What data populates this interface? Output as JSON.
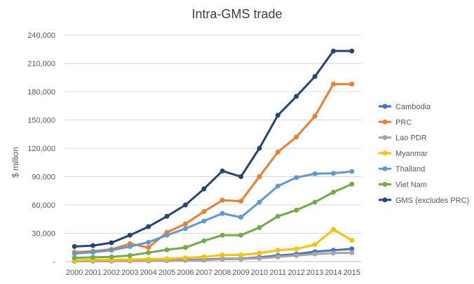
{
  "chart_data": {
    "type": "line",
    "title": "Intra-GMS trade",
    "xlabel": "",
    "ylabel": "$ million",
    "x": [
      "2000",
      "2001",
      "2002",
      "2003",
      "2004",
      "2005",
      "2006",
      "2007",
      "2008",
      "2009",
      "2010",
      "2011",
      "2012",
      "2013",
      "2014",
      "2015"
    ],
    "ylim": [
      0,
      240000
    ],
    "yticks": [
      0,
      30000,
      60000,
      90000,
      120000,
      150000,
      180000,
      210000,
      240000
    ],
    "ytick_labels": [
      "-",
      "30,000",
      "60,000",
      "90,000",
      "120,000",
      "150,000",
      "180,000",
      "210,000",
      "240,000"
    ],
    "grid": true,
    "legend_position": "right",
    "series": [
      {
        "name": "Cambodia",
        "color": "#4472c4",
        "values": [
          500,
          600,
          700,
          800,
          1000,
          1300,
          1700,
          2200,
          3000,
          3200,
          4500,
          6500,
          8000,
          10500,
          12000,
          13500
        ]
      },
      {
        "name": "PRC",
        "color": "#ed7d31",
        "values": [
          10000,
          11000,
          13000,
          19000,
          15000,
          31000,
          40000,
          53000,
          65000,
          64000,
          90000,
          116000,
          132000,
          154000,
          188000,
          188000
        ]
      },
      {
        "name": "Lao PDR",
        "color": "#a5a5a5",
        "values": [
          300,
          400,
          500,
          600,
          700,
          900,
          1200,
          1500,
          2500,
          2700,
          3500,
          5000,
          6500,
          8000,
          9000,
          9500
        ]
      },
      {
        "name": "Myanmar",
        "color": "#ffc000",
        "values": [
          1500,
          1800,
          2000,
          2200,
          2500,
          3000,
          4000,
          5000,
          7000,
          7000,
          9000,
          12000,
          13500,
          18000,
          34000,
          22500
        ]
      },
      {
        "name": "Thailand",
        "color": "#5b9bd5",
        "values": [
          8500,
          10000,
          12000,
          16000,
          20500,
          28000,
          35000,
          43000,
          51000,
          47000,
          63000,
          80000,
          89000,
          93000,
          93500,
          95500
        ]
      },
      {
        "name": "Viet Nam",
        "color": "#70ad47",
        "values": [
          4000,
          4500,
          5000,
          6500,
          9500,
          12500,
          15000,
          22000,
          28000,
          28000,
          36000,
          48000,
          54500,
          63000,
          73500,
          82000
        ]
      },
      {
        "name": "GMS (excludes PRC)",
        "color": "#264478",
        "values": [
          16000,
          17000,
          20000,
          28000,
          37000,
          48000,
          60000,
          77000,
          96000,
          90000,
          120000,
          155000,
          175000,
          196000,
          223000,
          223000
        ]
      }
    ]
  }
}
